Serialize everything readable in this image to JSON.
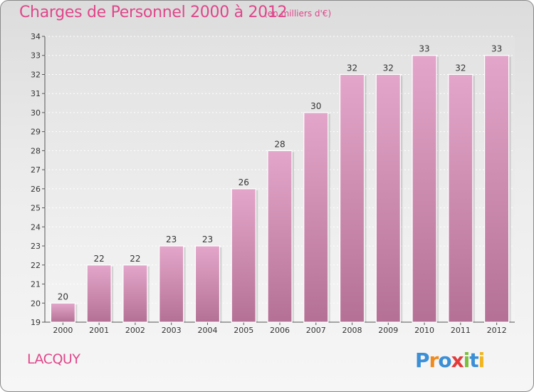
{
  "header": {
    "title": "Charges de Personnel 2000 à 2012",
    "subtitle": "(en milliers d'€)"
  },
  "footer": {
    "place": "LACQUY",
    "brand": "Proxiti"
  },
  "colors": {
    "bar_top": "#e3a6ca",
    "bar_bottom": "#b47195",
    "title": "#e0468a"
  },
  "chart_data": {
    "type": "bar",
    "title": "Charges de Personnel 2000 à 2012",
    "subtitle": "(en milliers d'€)",
    "categories": [
      "2000",
      "2001",
      "2002",
      "2003",
      "2004",
      "2005",
      "2006",
      "2007",
      "2008",
      "2009",
      "2010",
      "2011",
      "2012"
    ],
    "values": [
      20,
      22,
      22,
      23,
      23,
      26,
      28,
      30,
      32,
      32,
      33,
      32,
      33
    ],
    "ylim": [
      19,
      34
    ],
    "yticks": [
      19,
      20,
      21,
      22,
      23,
      24,
      25,
      26,
      27,
      28,
      29,
      30,
      31,
      32,
      33,
      34
    ],
    "grid": true,
    "legend": "none"
  }
}
